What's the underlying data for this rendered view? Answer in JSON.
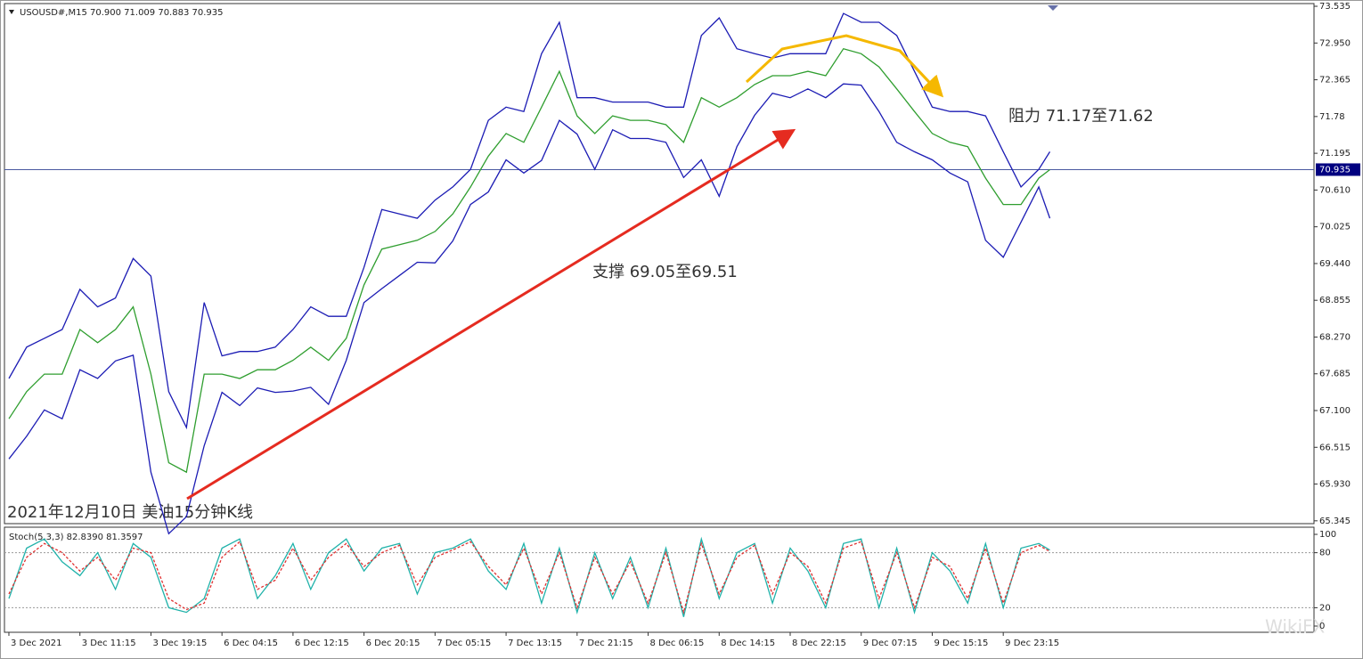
{
  "chart_data": [
    {
      "type": "line",
      "title": "USOUSD#,M15 70.900 71.009 70.883 70.935",
      "annotations": [
        "阻力 71.17至71.62",
        "支撑 69.05至69.51",
        "2021年12月10日 美油15分钟K线"
      ],
      "xlim": [
        -2,
        588
      ],
      "ylim": [
        65.3,
        73.578
      ],
      "yticks": [
        73.535,
        {
          "value": 72.95,
          "label": "72.950"
        },
        72.365,
        71.78,
        71.195,
        {
          "value": 70.61,
          "label": "70.610"
        },
        70.025,
        {
          "value": 69.44,
          "label": "69.440"
        },
        68.855,
        {
          "value": 68.27,
          "label": "68.270"
        },
        67.685,
        {
          "value": 67.1,
          "label": "67.100"
        },
        66.515,
        {
          "value": 65.93,
          "label": "65.930"
        },
        65.345
      ],
      "price_line": 70.935,
      "x": [
        0,
        8,
        16,
        24,
        32,
        40,
        48,
        56,
        64,
        72,
        80,
        88,
        96,
        104,
        112,
        120,
        128,
        136,
        144,
        152,
        160,
        168,
        176,
        184,
        192,
        200,
        208,
        216,
        224,
        232,
        240,
        248,
        256,
        264,
        272,
        280,
        288,
        296,
        304,
        312,
        320,
        328,
        336,
        344,
        352,
        360,
        368,
        376,
        384,
        392,
        400,
        408,
        416,
        424,
        432,
        440,
        448,
        456,
        464,
        469
      ],
      "series": [
        {
          "color": "#2f9e2f",
          "values": [
            66.97,
            67.4,
            67.68,
            67.68,
            68.39,
            68.18,
            68.39,
            68.75,
            67.68,
            66.27,
            66.12,
            67.68,
            67.68,
            67.61,
            67.75,
            67.75,
            67.9,
            68.11,
            67.9,
            68.25,
            69.1,
            69.67,
            69.74,
            69.81,
            69.95,
            70.23,
            70.66,
            71.15,
            71.51,
            71.37,
            71.93,
            72.5,
            71.79,
            71.51,
            71.79,
            71.72,
            71.72,
            71.65,
            71.37,
            72.08,
            71.93,
            72.08,
            72.29,
            72.43,
            72.43,
            72.5,
            72.43,
            72.86,
            72.78,
            72.57,
            72.22,
            71.86,
            71.51,
            71.37,
            71.3,
            70.8,
            70.38,
            70.38,
            70.8,
            70.935
          ]
        },
        {
          "color": "#1c1cb4",
          "values": [
            67.61,
            68.11,
            68.25,
            68.39,
            69.03,
            68.75,
            68.89,
            69.52,
            69.24,
            67.4,
            66.83,
            68.82,
            67.97,
            68.04,
            68.04,
            68.11,
            68.39,
            68.75,
            68.6,
            68.6,
            69.38,
            70.3,
            70.23,
            70.16,
            70.45,
            70.66,
            70.94,
            71.72,
            71.93,
            71.86,
            72.78,
            73.28,
            72.08,
            72.08,
            72.01,
            72.01,
            72.01,
            71.93,
            71.93,
            73.07,
            73.35,
            72.86,
            72.78,
            72.71,
            72.78,
            72.78,
            72.78,
            73.42,
            73.28,
            73.28,
            73.07,
            72.5,
            71.93,
            71.86,
            71.86,
            71.79,
            71.22,
            70.66,
            70.94,
            71.22
          ]
        },
        {
          "color": "#1c1cb4",
          "values": [
            66.33,
            66.69,
            67.11,
            66.97,
            67.75,
            67.61,
            67.89,
            67.98,
            66.12,
            65.14,
            65.41,
            66.54,
            67.39,
            67.18,
            67.46,
            67.39,
            67.41,
            67.47,
            67.2,
            67.9,
            68.82,
            69.04,
            69.25,
            69.46,
            69.45,
            69.8,
            70.38,
            70.58,
            71.09,
            70.88,
            71.08,
            71.72,
            71.5,
            70.94,
            71.57,
            71.43,
            71.43,
            71.37,
            70.81,
            71.09,
            70.51,
            71.3,
            71.8,
            72.15,
            72.08,
            72.22,
            72.08,
            72.3,
            72.28,
            71.86,
            71.37,
            71.22,
            71.09,
            70.88,
            70.74,
            69.81,
            69.54,
            70.1,
            70.66,
            70.16
          ]
        }
      ]
    },
    {
      "type": "line",
      "title": "Stoch(5,3,3) 82.8390 81.3597",
      "watermark": "WikiFX",
      "xlim": [
        -2,
        588
      ],
      "ylim": [
        -6.8,
        107.8
      ],
      "yticks": [
        100,
        80,
        20,
        0
      ],
      "levels": [
        80,
        20
      ],
      "xticks": [
        {
          "value": 0,
          "label": "3 Dec 2021"
        },
        {
          "value": 32,
          "label": "3 Dec 11:15"
        },
        {
          "value": 64,
          "label": "3 Dec 19:15"
        },
        {
          "value": 96,
          "label": "6 Dec 04:15"
        },
        {
          "value": 128,
          "label": "6 Dec 12:15"
        },
        {
          "value": 160,
          "label": "6 Dec 20:15"
        },
        {
          "value": 192,
          "label": "7 Dec 05:15"
        },
        {
          "value": 224,
          "label": "7 Dec 13:15"
        },
        {
          "value": 256,
          "label": "7 Dec 21:15"
        },
        {
          "value": 288,
          "label": "8 Dec 06:15"
        },
        {
          "value": 320,
          "label": "8 Dec 14:15"
        },
        {
          "value": 352,
          "label": "8 Dec 22:15"
        },
        {
          "value": 384,
          "label": "9 Dec 07:15"
        },
        {
          "value": 416,
          "label": "9 Dec 15:15"
        },
        {
          "value": 448,
          "label": "9 Dec 23:15"
        }
      ],
      "x": [
        0,
        8,
        16,
        24,
        32,
        40,
        48,
        56,
        64,
        72,
        80,
        88,
        96,
        104,
        112,
        120,
        128,
        136,
        144,
        152,
        160,
        168,
        176,
        184,
        192,
        200,
        208,
        216,
        224,
        232,
        240,
        248,
        256,
        264,
        272,
        280,
        288,
        296,
        304,
        312,
        320,
        328,
        336,
        344,
        352,
        360,
        368,
        376,
        384,
        392,
        400,
        408,
        416,
        424,
        432,
        440,
        448,
        456,
        464,
        469
      ],
      "series": [
        {
          "color": "#20b2aa",
          "values": [
            30,
            85,
            95,
            70,
            55,
            80,
            40,
            90,
            75,
            20,
            15,
            30,
            85,
            95,
            30,
            55,
            90,
            40,
            80,
            95,
            60,
            85,
            90,
            35,
            80,
            85,
            95,
            60,
            40,
            90,
            25,
            85,
            15,
            80,
            30,
            75,
            20,
            85,
            10,
            95,
            30,
            80,
            90,
            25,
            85,
            60,
            20,
            90,
            95,
            20,
            85,
            15,
            80,
            60,
            25,
            90,
            20,
            85,
            90,
            82.839
          ]
        },
        {
          "color": "#e03030",
          "dashed": true,
          "values": [
            35,
            75,
            90,
            80,
            60,
            75,
            50,
            85,
            80,
            30,
            18,
            25,
            75,
            92,
            40,
            50,
            85,
            50,
            75,
            90,
            65,
            80,
            88,
            45,
            75,
            83,
            92,
            65,
            45,
            85,
            35,
            80,
            20,
            75,
            35,
            70,
            25,
            80,
            15,
            90,
            35,
            75,
            88,
            35,
            80,
            65,
            25,
            85,
            92,
            30,
            80,
            20,
            75,
            65,
            30,
            85,
            25,
            80,
            88,
            81.3597
          ]
        }
      ]
    }
  ]
}
